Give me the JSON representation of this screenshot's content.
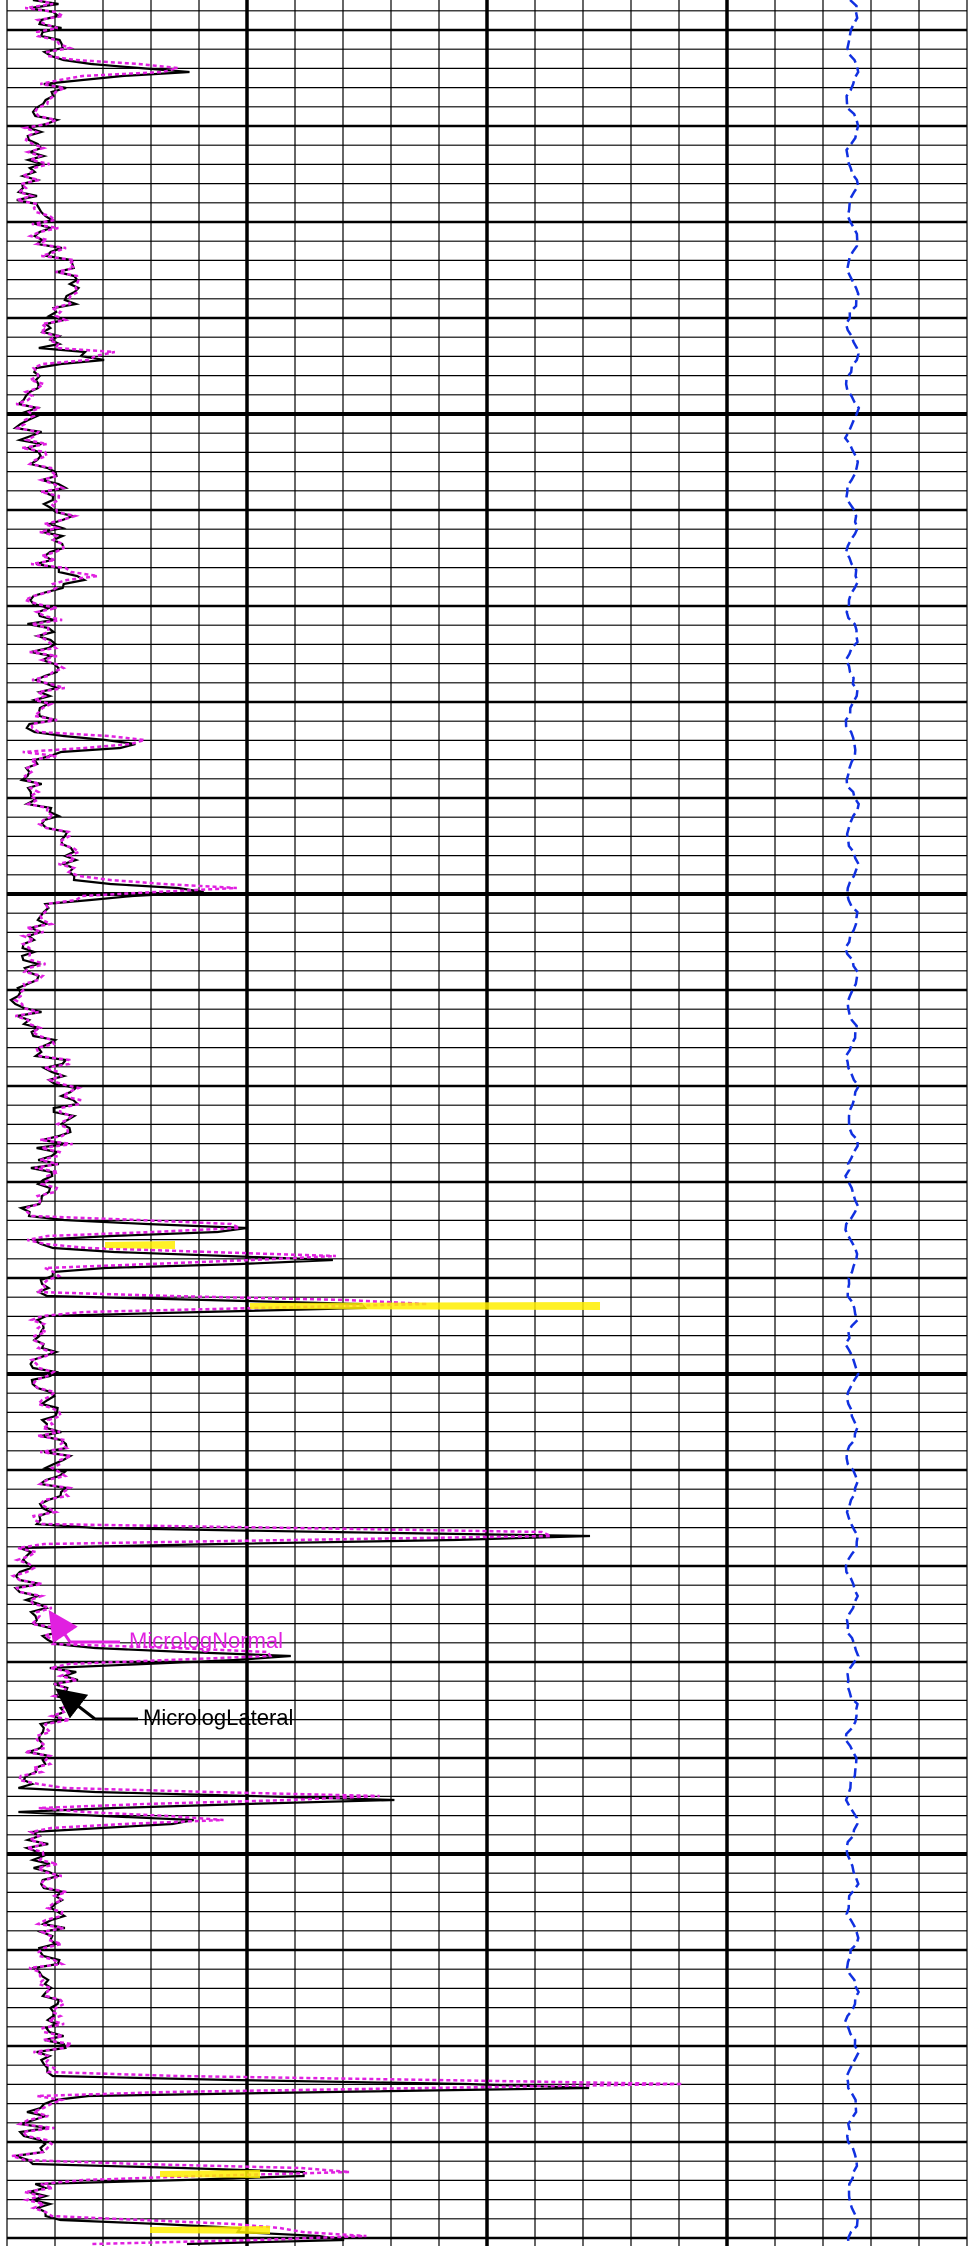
{
  "annotations": {
    "normal": "MicrologNormal",
    "lateral": "MicrologLateral"
  }
}
